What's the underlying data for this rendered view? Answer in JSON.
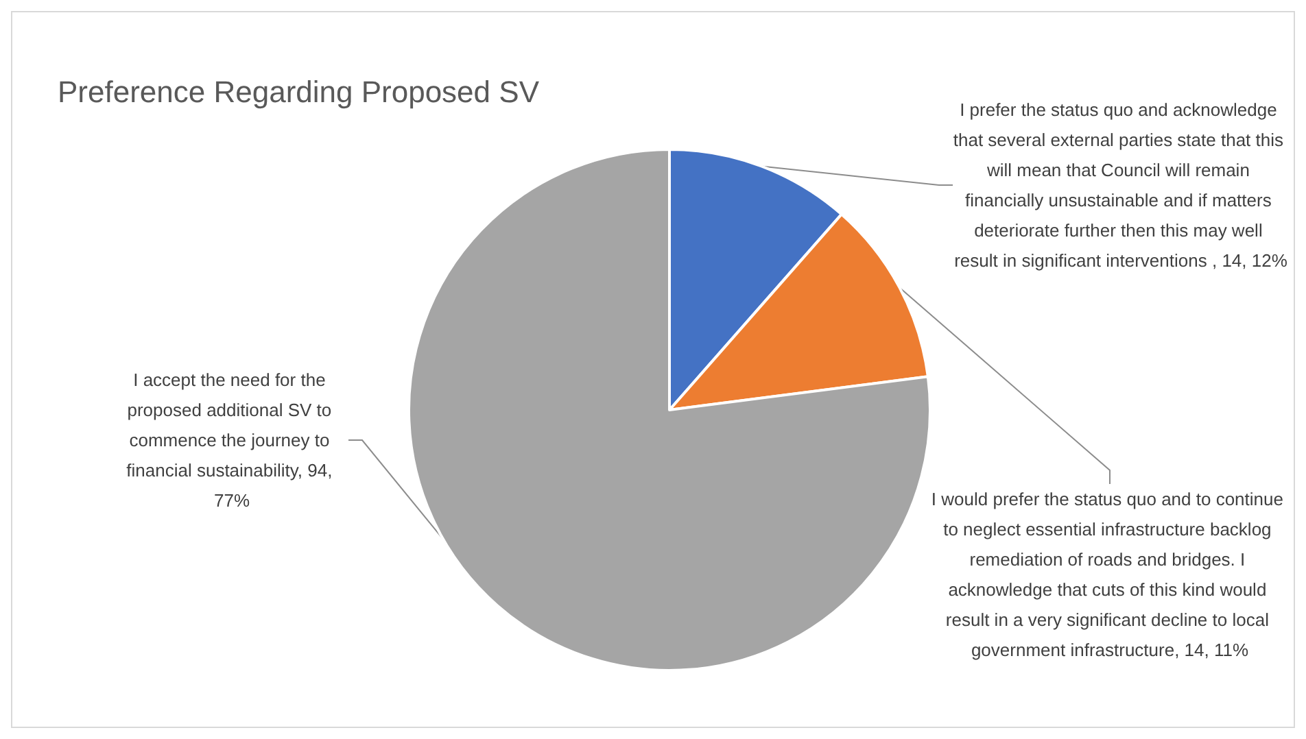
{
  "chart_data": {
    "type": "pie",
    "title": "Preference Regarding Proposed SV",
    "categories": [
      "I prefer the status quo and acknowledge that several external parties state that this will mean that Council will remain financially unsustainable and if matters deteriorate further then this may well result in significant interventions ",
      "I would prefer the status quo and to continue to neglect essential infrastructure backlog remediation of roads and bridges. I acknowledge that cuts of this kind would result in a very significant decline to local government infrastructure",
      "I accept the need for the proposed additional SV to commence the journey to financial sustainability"
    ],
    "values": [
      14,
      14,
      94
    ],
    "value_labels": [
      "14, 12%",
      "14, 11%",
      "94, 77%"
    ],
    "colors": [
      "#4472c4",
      "#ed7d31",
      "#a5a5a5"
    ],
    "legend": false
  }
}
